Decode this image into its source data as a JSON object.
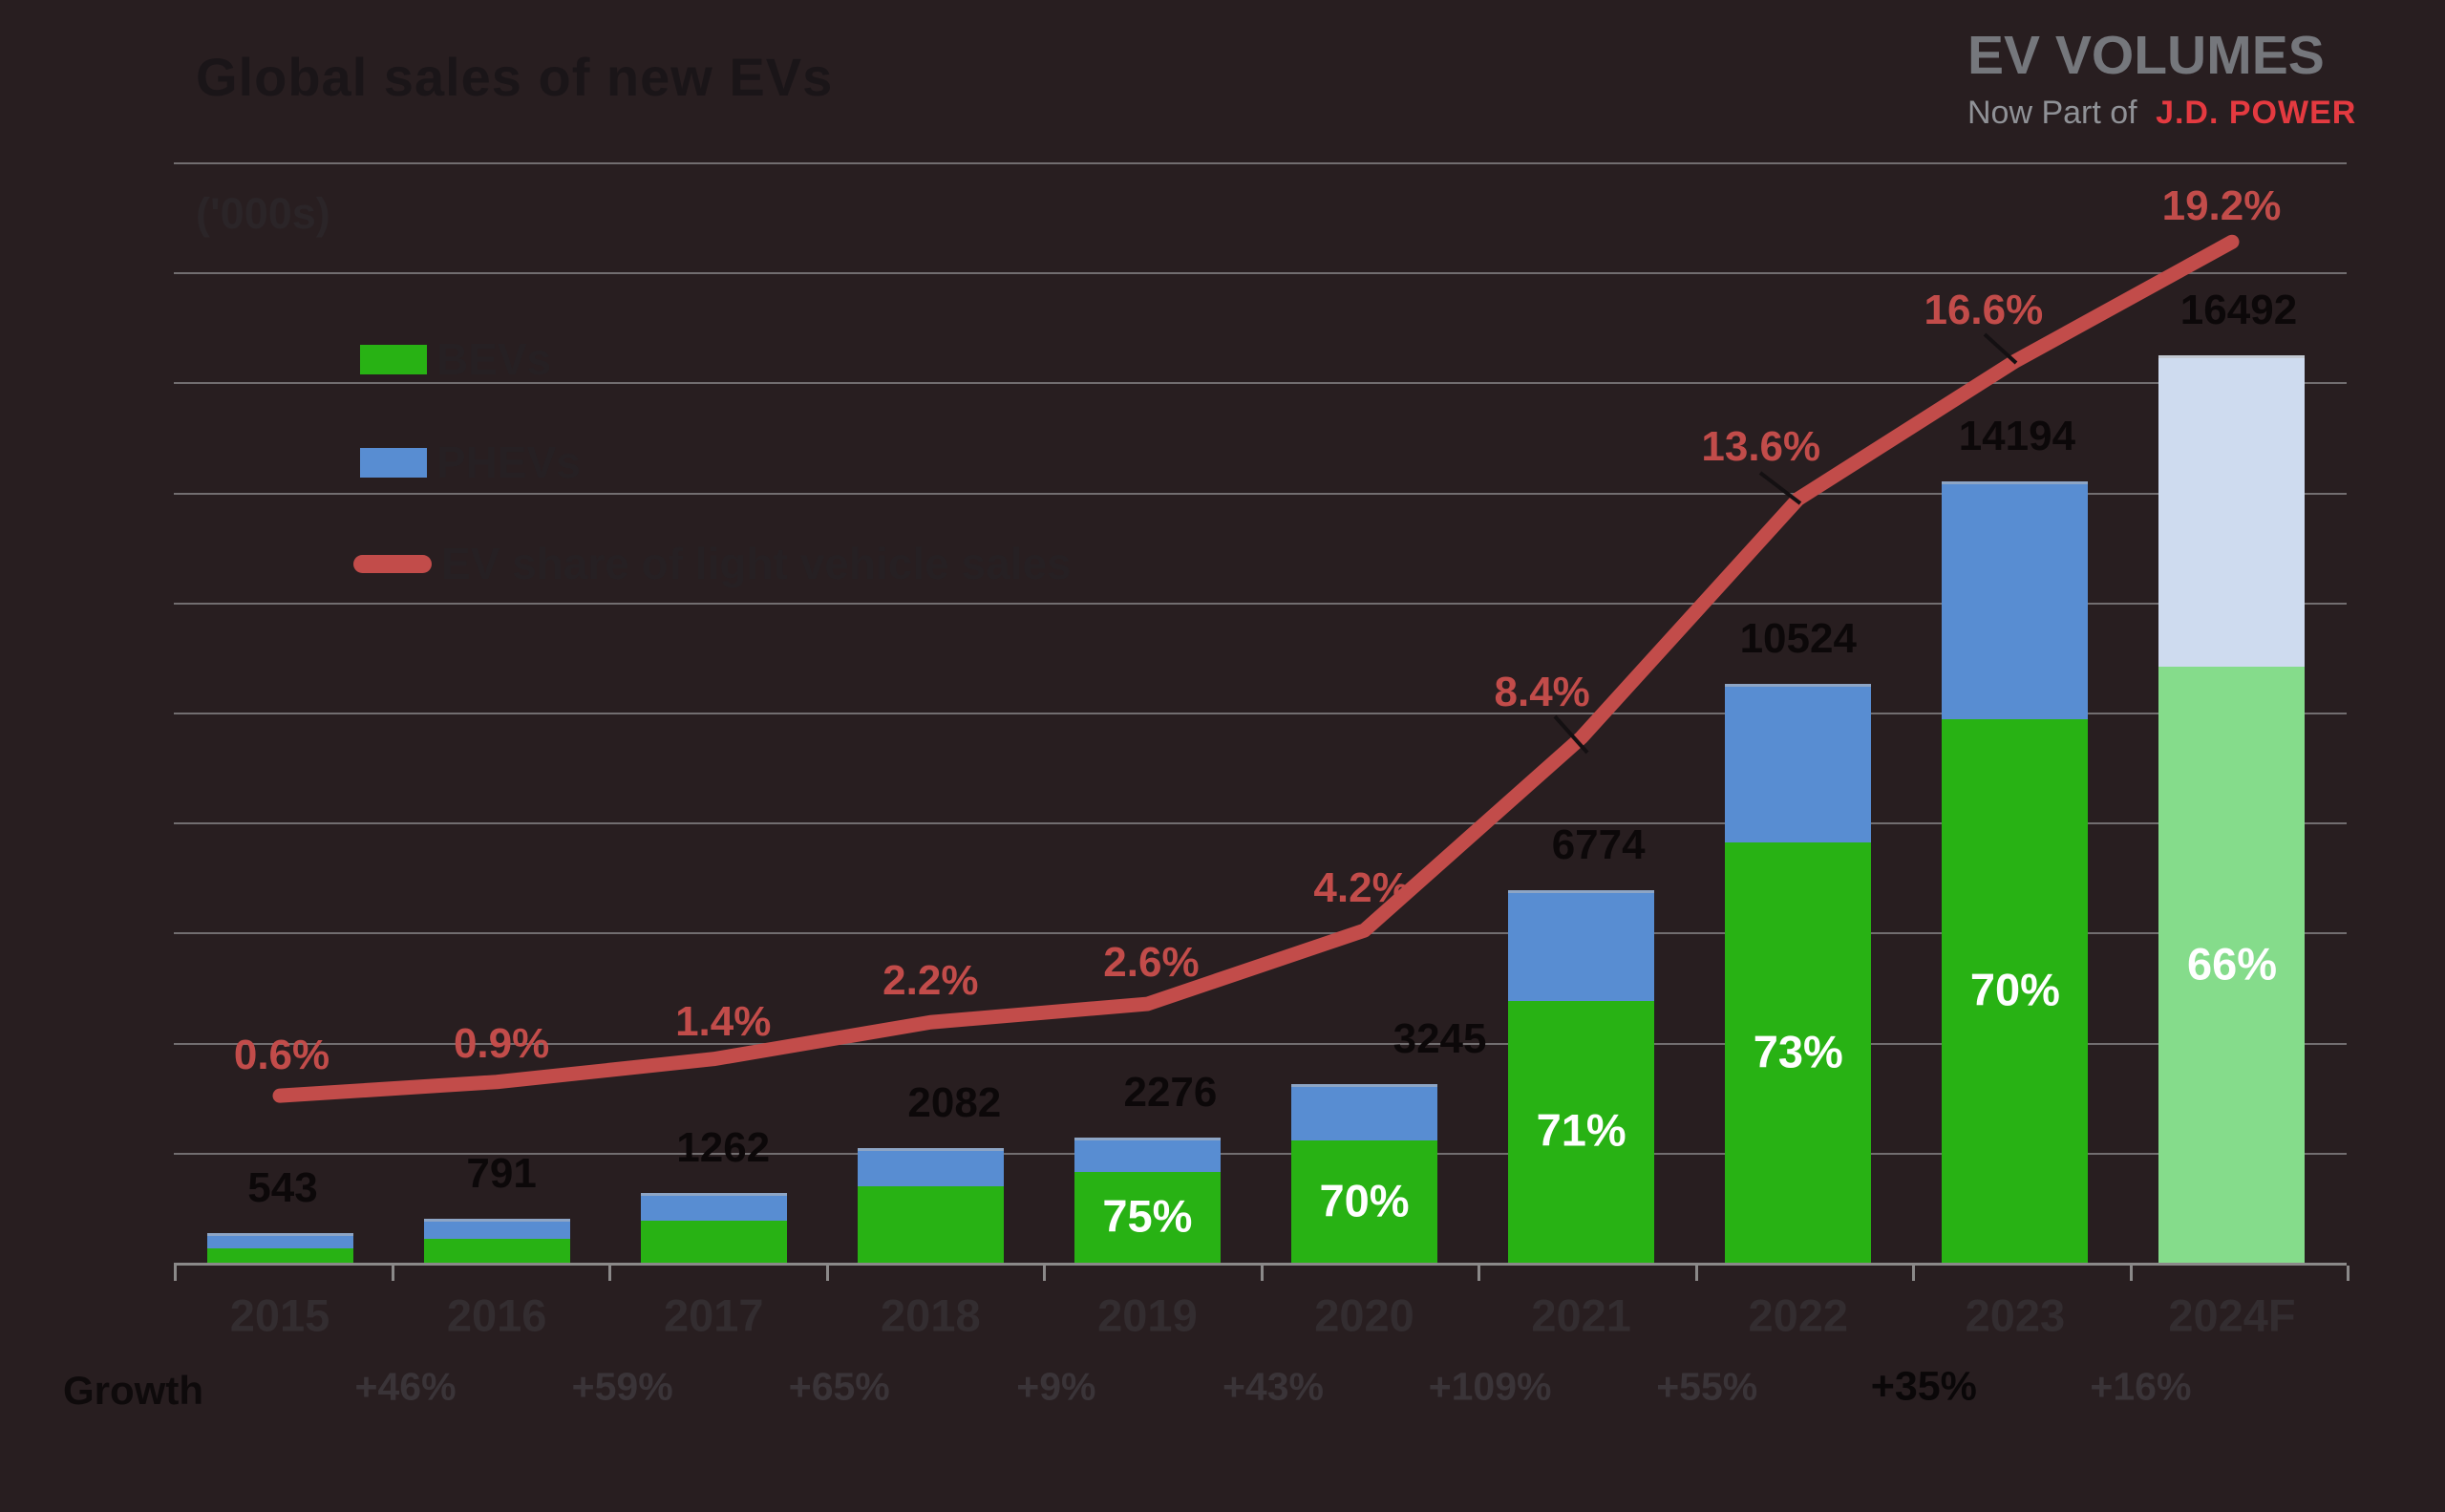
{
  "header": {
    "title": "Global sales of new EVs",
    "units_label": "('000s)"
  },
  "logo": {
    "brand": "EV VOLUMES",
    "tagline_prefix": "Now Part of",
    "tagline_brand": "J.D. POWER",
    "brand_color": "#75777c",
    "tagline_brand_color": "#e43a40"
  },
  "legend": {
    "items": [
      {
        "label": "BEVs",
        "color": "#28b214",
        "type": "bar"
      },
      {
        "label": "PHEVs",
        "color": "#588dd2",
        "type": "bar"
      },
      {
        "label": "EV share of light vehicle sales",
        "color": "#c24c4a",
        "type": "line"
      }
    ]
  },
  "growth": {
    "label": "Growth",
    "values": [
      "+46%",
      "+59%",
      "+65%",
      "+9%",
      "+43%",
      "+109%",
      "+55%",
      "+35%",
      "+16%"
    ],
    "emphasized_value": "+35%",
    "emphasized_index": 7
  },
  "chart_data": {
    "type": "bar",
    "stacked": true,
    "title": "Global sales of new EVs",
    "ylabel": "('000s)",
    "categories": [
      "2015",
      "2016",
      "2017",
      "2018",
      "2019",
      "2020",
      "2021",
      "2022",
      "2023",
      "2024F"
    ],
    "series": [
      {
        "name": "BEVs",
        "color": "#28b214",
        "values": [
          306,
          481,
          818,
          1441,
          1707,
          2272,
          4810,
          7683,
          9936,
          10885
        ]
      },
      {
        "name": "PHEVs",
        "color": "#588dd2",
        "values": [
          237,
          310,
          444,
          641,
          569,
          973,
          1964,
          2841,
          4258,
          5607
        ]
      }
    ],
    "totals": [
      543,
      791,
      1262,
      2082,
      2276,
      3245,
      6774,
      10524,
      14194,
      16492
    ],
    "bev_share_labels": [
      null,
      null,
      null,
      null,
      "75%",
      "70%",
      "71%",
      "73%",
      "70%",
      "66%"
    ],
    "line_series": {
      "name": "EV share of light vehicle sales",
      "color": "#c24c4a",
      "values_pct": [
        0.6,
        0.9,
        1.4,
        2.2,
        2.6,
        4.2,
        8.4,
        13.6,
        16.6,
        19.2
      ],
      "labels": [
        "0.6%",
        "0.9%",
        "1.4%",
        "2.2%",
        "2.6%",
        "4.2%",
        "8.4%",
        "13.6%",
        "16.6%",
        "19.2%"
      ]
    },
    "forecast_category": "2024F",
    "forecast_colors": {
      "bev": "#85dc8b",
      "phev": "#cedbef"
    },
    "y_axis": {
      "max": 20000,
      "gridline_step": 2000,
      "grid": true,
      "axis_labels_shown": false
    },
    "legend_position": "top-left"
  }
}
